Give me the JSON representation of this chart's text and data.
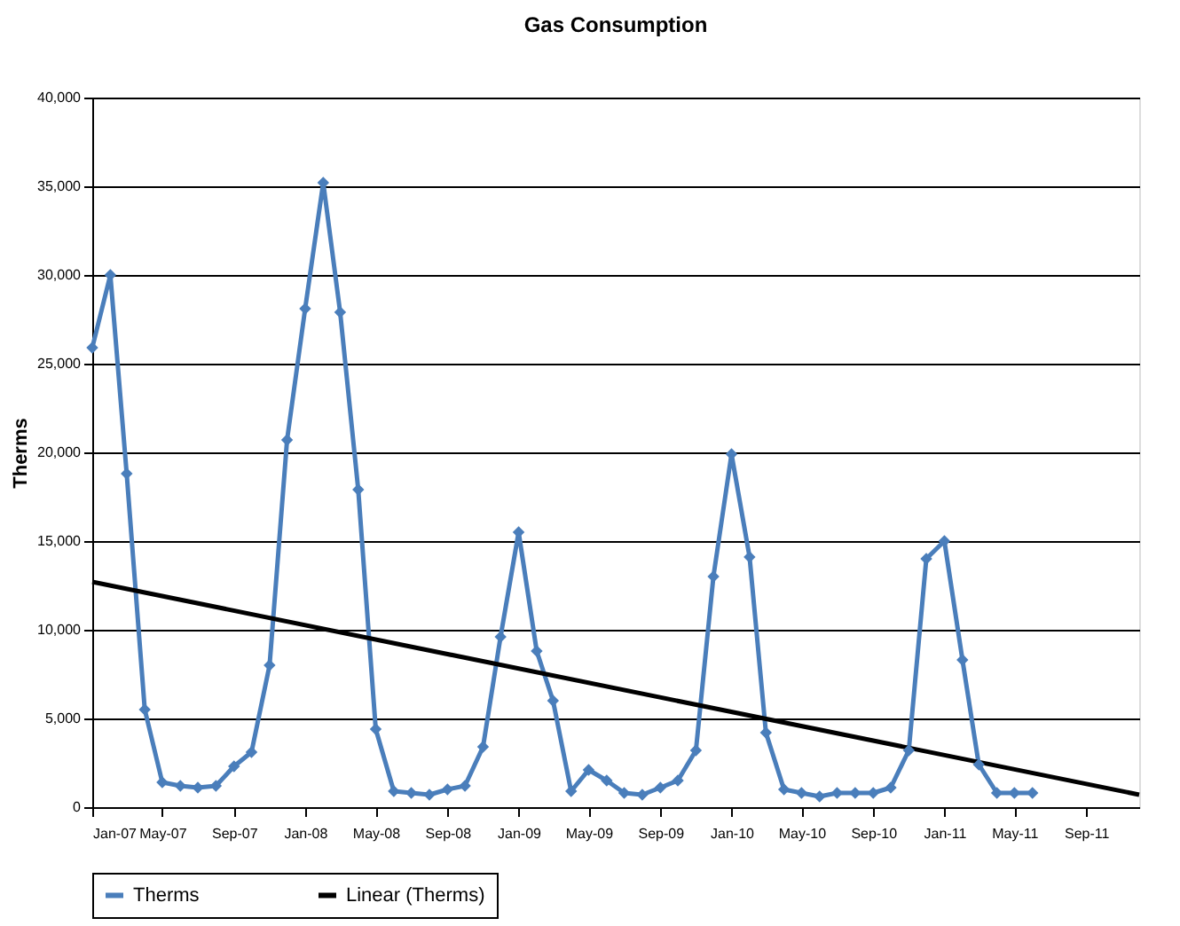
{
  "chart_data": {
    "type": "line",
    "title": "Gas Consumption",
    "ylabel": "Therms",
    "x": [
      "2007-01",
      "2007-02",
      "2007-03",
      "2007-04",
      "2007-05",
      "2007-06",
      "2007-07",
      "2007-08",
      "2007-09",
      "2007-10",
      "2007-11",
      "2007-12",
      "2008-01",
      "2008-02",
      "2008-03",
      "2008-04",
      "2008-05",
      "2008-06",
      "2008-07",
      "2008-08",
      "2008-09",
      "2008-10",
      "2008-11",
      "2008-12",
      "2009-01",
      "2009-02",
      "2009-03",
      "2009-04",
      "2009-05",
      "2009-06",
      "2009-07",
      "2009-08",
      "2009-09",
      "2009-10",
      "2009-11",
      "2009-12",
      "2010-01",
      "2010-02",
      "2010-03",
      "2010-04",
      "2010-05",
      "2010-06",
      "2010-07",
      "2010-08",
      "2010-09",
      "2010-10",
      "2010-11",
      "2010-12",
      "2011-01",
      "2011-02",
      "2011-03",
      "2011-04",
      "2011-05",
      "2011-06"
    ],
    "series": [
      {
        "name": "Therms",
        "color": "#4a7ebb",
        "marker": "diamond",
        "values": [
          25900,
          30000,
          18800,
          5500,
          1400,
          1200,
          1100,
          1200,
          2300,
          3100,
          8000,
          20700,
          28100,
          35200,
          27900,
          17900,
          4400,
          900,
          800,
          700,
          1000,
          1200,
          3400,
          9600,
          15500,
          8800,
          6000,
          900,
          2100,
          1500,
          800,
          700,
          1100,
          1500,
          3200,
          13000,
          19900,
          14100,
          4200,
          1000,
          800,
          600,
          800,
          800,
          800,
          1100,
          3200,
          14000,
          15000,
          8300,
          2400,
          800,
          800,
          800
        ]
      },
      {
        "name": "Linear (Therms)",
        "color": "#000000",
        "marker": "none",
        "x": [
          "2007-01",
          "2011-12"
        ],
        "values": [
          12700,
          700
        ]
      }
    ],
    "xlim": [
      "2007-01",
      "2011-12"
    ],
    "xticks": [
      {
        "value": "2007-01",
        "label": "Jan-07"
      },
      {
        "value": "2007-05",
        "label": "May-07"
      },
      {
        "value": "2007-09",
        "label": "Sep-07"
      },
      {
        "value": "2008-01",
        "label": "Jan-08"
      },
      {
        "value": "2008-05",
        "label": "May-08"
      },
      {
        "value": "2008-09",
        "label": "Sep-08"
      },
      {
        "value": "2009-01",
        "label": "Jan-09"
      },
      {
        "value": "2009-05",
        "label": "May-09"
      },
      {
        "value": "2009-09",
        "label": "Sep-09"
      },
      {
        "value": "2010-01",
        "label": "Jan-10"
      },
      {
        "value": "2010-05",
        "label": "May-10"
      },
      {
        "value": "2010-09",
        "label": "Sep-10"
      },
      {
        "value": "2011-01",
        "label": "Jan-11"
      },
      {
        "value": "2011-05",
        "label": "May-11"
      },
      {
        "value": "2011-09",
        "label": "Sep-11"
      }
    ],
    "ylim": [
      0,
      40000
    ],
    "yticks": [
      0,
      {
        "value": 5000,
        "label": "5,000"
      },
      {
        "value": 10000,
        "label": "10,000"
      },
      {
        "value": 15000,
        "label": "15,000"
      },
      {
        "value": 20000,
        "label": "20,000"
      },
      {
        "value": 25000,
        "label": "25,000"
      },
      {
        "value": 30000,
        "label": "30,000"
      },
      {
        "value": 35000,
        "label": "35,000"
      },
      {
        "value": 40000,
        "label": "40,000"
      }
    ],
    "grid": "y",
    "legend": "bottom"
  }
}
